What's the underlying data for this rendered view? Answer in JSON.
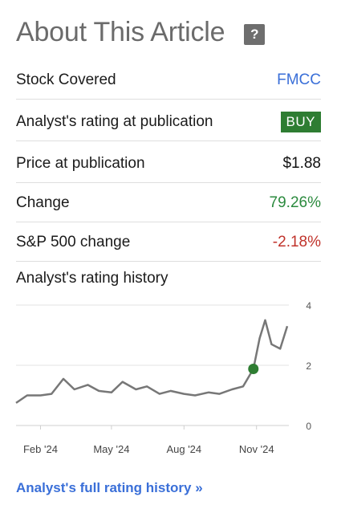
{
  "header": {
    "title": "About This Article",
    "help_icon": "?"
  },
  "rows": [
    {
      "label": "Stock Covered",
      "value": "FMCC"
    },
    {
      "label": "Analyst's rating at publication",
      "value": "BUY"
    },
    {
      "label": "Price at publication",
      "value": "$1.88"
    },
    {
      "label": "Change",
      "value": "79.26%"
    },
    {
      "label": "S&P 500 change",
      "value": "-2.18%"
    }
  ],
  "colors": {
    "up": "#2b8a3e",
    "down": "#c0332b",
    "link": "#3a6fd8",
    "badge": "#2e7d32"
  },
  "history": {
    "label": "Analyst's rating history"
  },
  "chart_data": {
    "type": "line",
    "xlabel": "",
    "ylabel": "",
    "x_ticks": [
      "Feb '24",
      "May '24",
      "Aug '24",
      "Nov '24"
    ],
    "y_ticks": [
      0,
      2,
      4
    ],
    "ylim": [
      0,
      4
    ],
    "grid": true,
    "series": [
      {
        "values": [
          {
            "x": "2024-01-01",
            "y": 0.75
          },
          {
            "x": "2024-01-15",
            "y": 1.0
          },
          {
            "x": "2024-02-01",
            "y": 1.0
          },
          {
            "x": "2024-02-15",
            "y": 1.05
          },
          {
            "x": "2024-03-01",
            "y": 1.55
          },
          {
            "x": "2024-03-15",
            "y": 1.2
          },
          {
            "x": "2024-04-01",
            "y": 1.35
          },
          {
            "x": "2024-04-15",
            "y": 1.15
          },
          {
            "x": "2024-05-01",
            "y": 1.1
          },
          {
            "x": "2024-05-15",
            "y": 1.45
          },
          {
            "x": "2024-06-01",
            "y": 1.2
          },
          {
            "x": "2024-06-15",
            "y": 1.3
          },
          {
            "x": "2024-07-01",
            "y": 1.05
          },
          {
            "x": "2024-07-15",
            "y": 1.15
          },
          {
            "x": "2024-08-01",
            "y": 1.05
          },
          {
            "x": "2024-08-15",
            "y": 1.0
          },
          {
            "x": "2024-09-01",
            "y": 1.1
          },
          {
            "x": "2024-09-15",
            "y": 1.05
          },
          {
            "x": "2024-10-01",
            "y": 1.2
          },
          {
            "x": "2024-10-15",
            "y": 1.3
          },
          {
            "x": "2024-10-28",
            "y": 1.88
          },
          {
            "x": "2024-11-05",
            "y": 2.9
          },
          {
            "x": "2024-11-12",
            "y": 3.5
          },
          {
            "x": "2024-11-20",
            "y": 2.7
          },
          {
            "x": "2024-12-01",
            "y": 2.55
          },
          {
            "x": "2024-12-10",
            "y": 3.3
          }
        ]
      }
    ],
    "marker": {
      "x": "2024-10-28",
      "y": 1.88
    }
  },
  "footer": {
    "link": "Analyst's full rating history »"
  }
}
